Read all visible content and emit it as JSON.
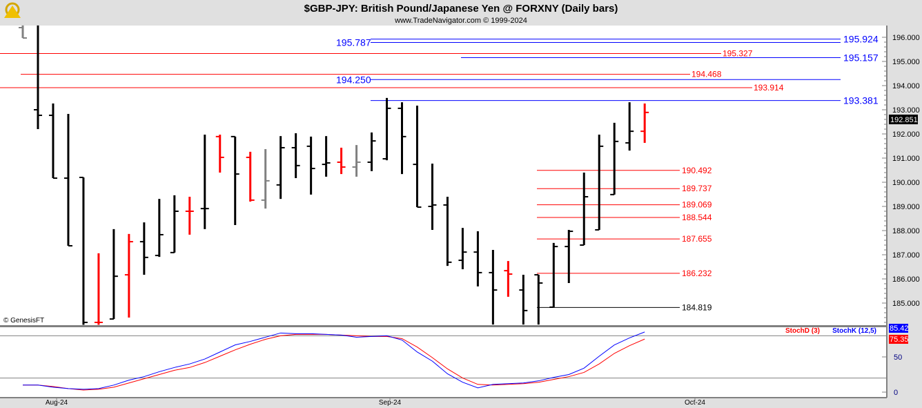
{
  "header": {
    "title": "$GBP-JPY:  British Pound/Japanese Yen @ FORXNY  (Daily bars)",
    "subtitle": "www.TradeNavigator.com © 1999-2024",
    "logo": "sextant-logo"
  },
  "copyright": "© GenesisFT",
  "chart_data": [
    {
      "type": "ohlc-bar",
      "ylim": [
        184.0,
        196.5
      ],
      "yticks": [
        "185.000",
        "186.000",
        "187.000",
        "188.000",
        "189.000",
        "190.000",
        "191.000",
        "192.000",
        "193.000",
        "194.000",
        "195.000",
        "196.000"
      ],
      "xticks": [
        "Aug-24",
        "Sep-24",
        "Oct-24"
      ],
      "last_price": "192.851",
      "colors": {
        "up": "#000000",
        "down": "#ff0000",
        "neutral": "#808080"
      },
      "bars": [
        [
          196.4,
          196.49,
          195.97,
          195.97,
          "g"
        ],
        [
          193.0,
          196.49,
          192.2,
          192.77,
          "k"
        ],
        [
          192.77,
          193.26,
          190.17,
          190.17,
          "k"
        ],
        [
          190.17,
          192.83,
          187.37,
          187.37,
          "k"
        ],
        [
          190.2,
          190.2,
          184.1,
          184.2,
          "k"
        ],
        [
          184.2,
          187.06,
          184.1,
          184.2,
          "r"
        ],
        [
          184.34,
          188.06,
          184.34,
          186.11,
          "k"
        ],
        [
          186.17,
          187.86,
          184.4,
          187.54,
          "r"
        ],
        [
          187.54,
          188.34,
          186.17,
          186.89,
          "k"
        ],
        [
          186.97,
          189.31,
          186.91,
          187.83,
          "k"
        ],
        [
          187.09,
          189.46,
          187.09,
          188.8,
          "k"
        ],
        [
          188.8,
          189.4,
          187.83,
          188.8,
          "r"
        ],
        [
          188.91,
          191.97,
          188.06,
          188.91,
          "k"
        ],
        [
          191.89,
          191.97,
          190.4,
          191.03,
          "r"
        ],
        [
          191.89,
          191.89,
          188.23,
          190.34,
          "k"
        ],
        [
          191.03,
          191.26,
          189.2,
          189.26,
          "r"
        ],
        [
          189.26,
          191.37,
          188.91,
          190.06,
          "g"
        ],
        [
          189.89,
          191.91,
          189.31,
          191.43,
          "k"
        ],
        [
          191.43,
          192.03,
          190.17,
          190.69,
          "k"
        ],
        [
          191.49,
          191.89,
          189.49,
          190.57,
          "k"
        ],
        [
          190.74,
          191.91,
          190.23,
          190.8,
          "k"
        ],
        [
          190.83,
          191.43,
          190.34,
          190.63,
          "r"
        ],
        [
          190.63,
          191.54,
          190.23,
          190.83,
          "g"
        ],
        [
          190.83,
          192.06,
          190.46,
          191.71,
          "k"
        ],
        [
          190.97,
          193.49,
          190.91,
          193.06,
          "k"
        ],
        [
          193.06,
          193.31,
          190.34,
          191.89,
          "k"
        ],
        [
          190.74,
          193.17,
          188.97,
          188.97,
          "k"
        ],
        [
          189.0,
          190.77,
          188.03,
          189.06,
          "k"
        ],
        [
          189.06,
          189.4,
          186.54,
          186.69,
          "k"
        ],
        [
          186.77,
          188.11,
          186.4,
          187.11,
          "k"
        ],
        [
          187.11,
          187.97,
          185.69,
          186.26,
          "k"
        ],
        [
          186.26,
          187.2,
          184.11,
          185.54,
          "k"
        ],
        [
          186.34,
          186.74,
          185.26,
          186.2,
          "r"
        ],
        [
          185.54,
          186.17,
          184.11,
          184.69,
          "k"
        ],
        [
          186.17,
          186.17,
          184.11,
          185.83,
          "k"
        ],
        [
          184.83,
          187.49,
          184.83,
          187.34,
          "k"
        ],
        [
          187.34,
          188.03,
          185.83,
          187.97,
          "k"
        ],
        [
          187.4,
          190.4,
          187.4,
          189.4,
          "k"
        ],
        [
          188.03,
          191.97,
          188.03,
          191.49,
          "k"
        ],
        [
          189.49,
          192.46,
          189.49,
          191.69,
          "k"
        ],
        [
          191.63,
          193.31,
          191.31,
          192.11,
          "k"
        ],
        [
          192.11,
          193.26,
          191.63,
          192.89,
          "r"
        ]
      ],
      "levels": [
        {
          "value": "195.924",
          "color": "#0000ff",
          "label_side": "right"
        },
        {
          "value": "195.787",
          "color": "#0000ff",
          "label_side": "left"
        },
        {
          "value": "195.327",
          "color": "#ff0000",
          "label_side": "right"
        },
        {
          "value": "195.157",
          "color": "#0000ff",
          "label_side": "right"
        },
        {
          "value": "194.468",
          "color": "#ff0000",
          "label_side": "right"
        },
        {
          "value": "194.250",
          "color": "#0000ff",
          "label_side": "left"
        },
        {
          "value": "193.914",
          "color": "#ff0000",
          "label_side": "right"
        },
        {
          "value": "193.381",
          "color": "#0000ff",
          "label_side": "right"
        },
        {
          "value": "190.492",
          "color": "#ff0000",
          "label_side": "right"
        },
        {
          "value": "189.737",
          "color": "#ff0000",
          "label_side": "right"
        },
        {
          "value": "189.069",
          "color": "#ff0000",
          "label_side": "right"
        },
        {
          "value": "188.544",
          "color": "#ff0000",
          "label_side": "right"
        },
        {
          "value": "187.655",
          "color": "#ff0000",
          "label_side": "right"
        },
        {
          "value": "186.232",
          "color": "#ff0000",
          "label_side": "right"
        },
        {
          "value": "184.819",
          "color": "#000000",
          "label_side": "right"
        }
      ]
    },
    {
      "type": "line",
      "ylim": [
        0,
        100
      ],
      "yticks": [
        "0",
        "50"
      ],
      "hlines": [
        20,
        80
      ],
      "series": [
        {
          "name": "StochD (3)",
          "color": "#ff0000",
          "last": "75.35",
          "values": [
            10,
            10,
            8,
            5,
            3,
            4,
            7,
            13,
            19,
            25,
            31,
            35,
            42,
            51,
            60,
            68,
            75,
            80,
            82,
            82,
            82,
            81,
            80,
            79,
            79,
            76,
            64,
            49,
            33,
            20,
            11,
            10,
            11,
            12,
            14,
            18,
            22,
            28,
            40,
            55,
            66,
            75.35
          ]
        },
        {
          "name": "StochK (12,5)",
          "color": "#0000ff",
          "last": "85.42",
          "values": [
            10,
            10,
            7,
            5,
            4,
            5,
            10,
            17,
            22,
            29,
            35,
            40,
            47,
            57,
            67,
            72,
            78,
            84,
            83,
            83,
            82,
            81,
            78,
            79,
            80,
            74,
            57,
            44,
            26,
            14,
            6,
            11,
            12,
            13,
            16,
            21,
            25,
            34,
            51,
            67,
            77,
            85.42
          ]
        }
      ]
    }
  ]
}
